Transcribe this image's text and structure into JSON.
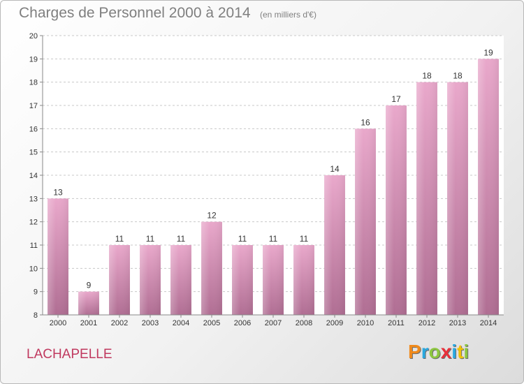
{
  "header": {
    "title": "Charges de Personnel 2000 à 2014",
    "subtitle": "(en milliers d'€)"
  },
  "footer": {
    "commune": "LACHAPELLE",
    "logo_letters": [
      "P",
      "r",
      "o",
      "x",
      "i",
      "t",
      "i"
    ],
    "logo_colors": [
      "#f08a1c",
      "#29a8e0",
      "#8cc63f",
      "#e8303a",
      "#29a8e0",
      "#f2c200",
      "#8cc63f"
    ]
  },
  "chart_data": {
    "type": "bar",
    "title": "Charges de Personnel 2000 à 2014",
    "subtitle": "(en milliers d'€)",
    "categories": [
      "2000",
      "2001",
      "2002",
      "2003",
      "2004",
      "2005",
      "2006",
      "2007",
      "2008",
      "2009",
      "2010",
      "2011",
      "2012",
      "2013",
      "2014"
    ],
    "values": [
      13,
      9,
      11,
      11,
      11,
      12,
      11,
      11,
      11,
      14,
      16,
      17,
      18,
      18,
      19
    ],
    "ylim": [
      8,
      20
    ],
    "yticks": [
      8,
      9,
      10,
      11,
      12,
      13,
      14,
      15,
      16,
      17,
      18,
      19,
      20
    ],
    "grid": true,
    "bar_color_top": "#e9a8cb",
    "bar_color_bottom": "#b06e93"
  }
}
